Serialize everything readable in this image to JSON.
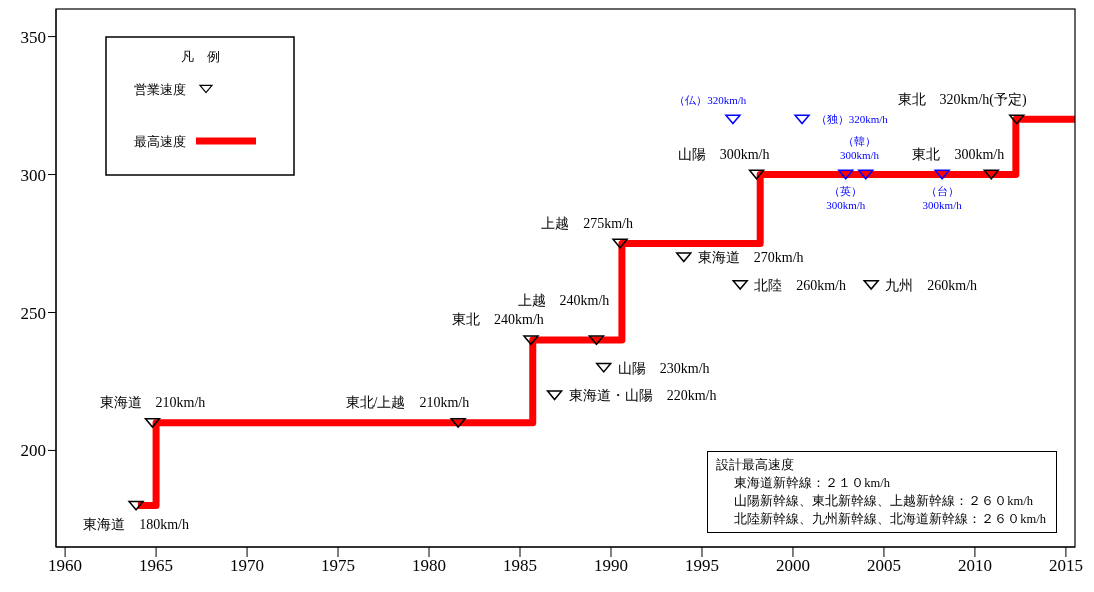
{
  "chart_data": {
    "type": "step",
    "legend": "top left",
    "legend_title": "凡　例",
    "grid": false,
    "xlim": [
      1959.5,
      2015.5
    ],
    "xticks": [
      1960,
      1965,
      1970,
      1975,
      1980,
      1985,
      1990,
      1995,
      2000,
      2005,
      2010,
      2015
    ],
    "ylim": [
      165,
      360
    ],
    "yticks": [
      200,
      250,
      300,
      350
    ],
    "series": [
      {
        "name": "営業速度",
        "type": "scatter",
        "marker": "triangle",
        "color": "#000000",
        "x": [
          1963.9,
          1964.8,
          1981.6,
          1985.6,
          1986.9,
          1989.2,
          1989.6,
          1990.5,
          1994.0,
          1997.1,
          1998.0,
          2004.3,
          2010.9,
          2012.3
        ],
        "values": [
          180,
          210,
          210,
          240,
          220,
          240,
          230,
          275,
          270,
          260,
          300,
          260,
          300,
          320
        ]
      },
      {
        "type": "scatter",
        "marker": "triangle",
        "color": "#0000ff",
        "x": [
          1996.7,
          2000.5,
          2002.9,
          2004.0,
          2008.2
        ],
        "values": [
          320,
          320,
          300,
          300,
          300
        ]
      },
      {
        "name": "最高速度",
        "color": "#ff0000",
        "x": [
          1964,
          1965,
          1985.7,
          1990.6,
          1998.2,
          2012.25,
          2015.5
        ],
        "values": [
          180,
          210,
          240,
          275,
          300,
          320,
          320
        ]
      }
    ],
    "annotations": [
      {
        "text": "東海道　180km/h",
        "x": 1963.9,
        "y": 180
      },
      {
        "text": "東海道　210km/h",
        "x": 1964.8,
        "y": 210
      },
      {
        "text": "東北/上越　210km/h",
        "x": 1981.6,
        "y": 210
      },
      {
        "text": "東北　240km/h",
        "x": 1985.6,
        "y": 240
      },
      {
        "text": "上越　240km/h",
        "x": 1989.2,
        "y": 240
      },
      {
        "text": "東海道・山陽　220km/h",
        "x": 1986.9,
        "y": 220
      },
      {
        "text": "山陽　230km/h",
        "x": 1989.6,
        "y": 230
      },
      {
        "text": "上越　275km/h",
        "x": 1990.5,
        "y": 275
      },
      {
        "text": "東海道　270km/h",
        "x": 1994.0,
        "y": 270
      },
      {
        "text": "北陸　260km/h",
        "x": 1997.1,
        "y": 260
      },
      {
        "text": "九州　260km/h",
        "x": 2004.3,
        "y": 260
      },
      {
        "text": "山陽　300km/h",
        "x": 1998.0,
        "y": 300
      },
      {
        "text": "東北　300km/h",
        "x": 2010.9,
        "y": 300
      },
      {
        "text": "東北　320km/h(予定)",
        "x": 2012.3,
        "y": 320
      },
      {
        "text": "（仏）320km/h",
        "x": 1996.7,
        "y": 320
      },
      {
        "text": "（独）320km/h",
        "x": 2000.5,
        "y": 320
      },
      {
        "text": "（韓）\n300km/h",
        "x": 2004.0,
        "y": 300
      },
      {
        "text": "（英）\n300km/h",
        "x": 2002.9,
        "y": 300
      },
      {
        "text": "（台）\n300km/h",
        "x": 2008.2,
        "y": 300
      },
      "設計最高速度",
      "東海道新幹線：２１０km/h",
      "山陽新幹線、東北新幹線、上越新幹線：２６０km/h",
      "北陸新幹線、九州新幹線、北海道新幹線：２６０km/h"
    ]
  }
}
